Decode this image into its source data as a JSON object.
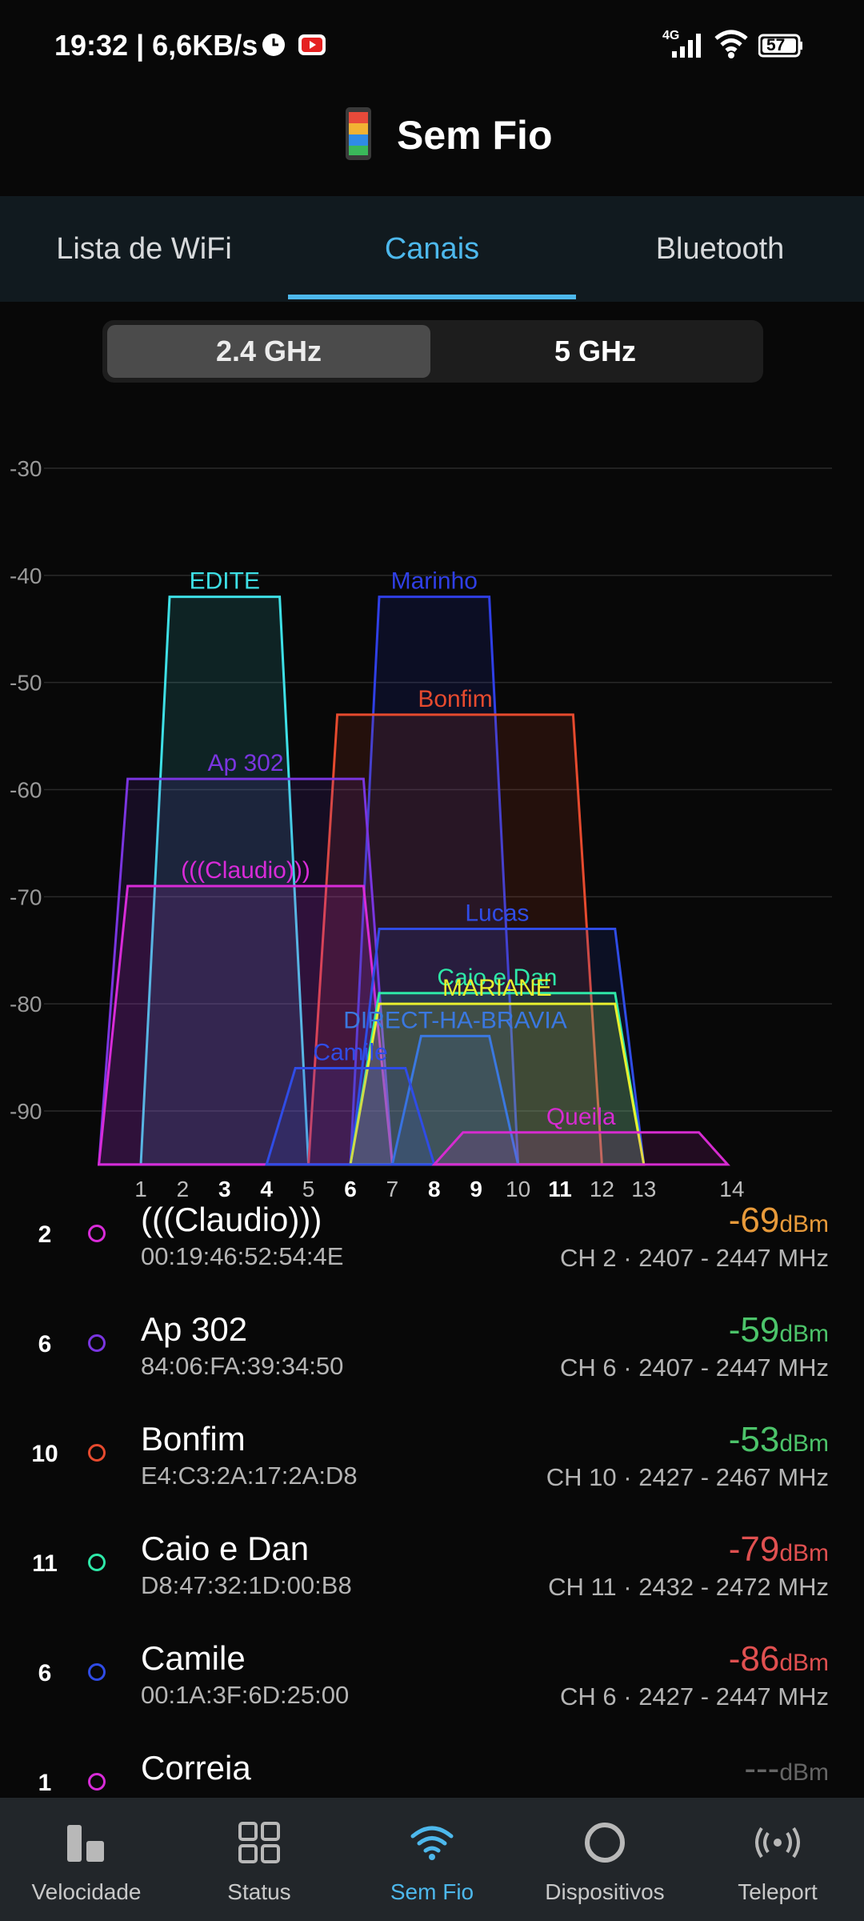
{
  "status_bar": {
    "time_speed": "19:32 | 6,6KB/s",
    "network_type": "4G",
    "battery": "57"
  },
  "header": {
    "title": "Sem Fio",
    "logo": "app-logo-icon"
  },
  "tabs": [
    {
      "label": "Lista de WiFi",
      "active": false
    },
    {
      "label": "Canais",
      "active": true
    },
    {
      "label": "Bluetooth",
      "active": false
    }
  ],
  "band": [
    {
      "label": "2.4 GHz",
      "active": true
    },
    {
      "label": "5 GHz",
      "active": false
    }
  ],
  "chart_data": {
    "type": "area",
    "y_ticks": [
      "-30",
      "-40",
      "-50",
      "-60",
      "-70",
      "-80",
      "-90"
    ],
    "ylim": [
      -95,
      -30
    ],
    "x_ticks": [
      {
        "label": "1",
        "bold": false
      },
      {
        "label": "2",
        "bold": false
      },
      {
        "label": "3",
        "bold": true
      },
      {
        "label": "4",
        "bold": true
      },
      {
        "label": "5",
        "bold": false
      },
      {
        "label": "6",
        "bold": true
      },
      {
        "label": "7",
        "bold": false
      },
      {
        "label": "8",
        "bold": true
      },
      {
        "label": "9",
        "bold": true
      },
      {
        "label": "10",
        "bold": false
      },
      {
        "label": "11",
        "bold": true
      },
      {
        "label": "12",
        "bold": false
      },
      {
        "label": "13",
        "bold": false
      },
      {
        "label": "14",
        "bold": false
      }
    ],
    "series": [
      {
        "name": "EDITE",
        "channel_from": 1,
        "channel_to": 5,
        "signal": -42,
        "color": "#3ee0e6"
      },
      {
        "name": "Marinho",
        "channel_from": 6,
        "channel_to": 10,
        "signal": -42,
        "color": "#2f3fe6"
      },
      {
        "name": "Bonfim",
        "channel_from": 5,
        "channel_to": 12,
        "signal": -53,
        "color": "#e64a2e"
      },
      {
        "name": "Ap 302",
        "channel_from": 0,
        "channel_to": 7,
        "signal": -59,
        "color": "#7a35e0"
      },
      {
        "name": "(((Claudio)))",
        "channel_from": 0,
        "channel_to": 7,
        "signal": -69,
        "color": "#d82bd8"
      },
      {
        "name": "Lucas",
        "channel_from": 6,
        "channel_to": 13,
        "signal": -73,
        "color": "#2f4ce6"
      },
      {
        "name": "Caio e Dan",
        "channel_from": 6,
        "channel_to": 13,
        "signal": -79,
        "color": "#2ee8a8"
      },
      {
        "name": "MARIANE",
        "channel_from": 6,
        "channel_to": 13,
        "signal": -80,
        "color": "#e8f02e"
      },
      {
        "name": "DIRECT-HA-BRAVIA",
        "channel_from": 7,
        "channel_to": 10,
        "signal": -83,
        "color": "#3a78e0"
      },
      {
        "name": "Camile",
        "channel_from": 4,
        "channel_to": 8,
        "signal": -86,
        "color": "#2f4ce6"
      },
      {
        "name": "Queila",
        "channel_from": 8,
        "channel_to": 15,
        "signal": -92,
        "color": "#d62bd0"
      }
    ]
  },
  "networks": [
    {
      "channel": "2",
      "ssid": "(((Claudio)))",
      "bssid": "00:19:46:52:54:4E",
      "signal": "-69",
      "unit": "dBm",
      "signal_color": "#e89a3a",
      "info": "CH 2 · 2407 - 2447 MHz",
      "ring_color": "#d82bd8"
    },
    {
      "channel": "6",
      "ssid": "Ap 302",
      "bssid": "84:06:FA:39:34:50",
      "signal": "-59",
      "unit": "dBm",
      "signal_color": "#4cc46a",
      "info": "CH 6 · 2407 - 2447 MHz",
      "ring_color": "#7a35e0"
    },
    {
      "channel": "10",
      "ssid": "Bonfim",
      "bssid": "E4:C3:2A:17:2A:D8",
      "signal": "-53",
      "unit": "dBm",
      "signal_color": "#4cc46a",
      "info": "CH 10 · 2427 - 2467 MHz",
      "ring_color": "#e64a2e"
    },
    {
      "channel": "11",
      "ssid": "Caio e Dan",
      "bssid": "D8:47:32:1D:00:B8",
      "signal": "-79",
      "unit": "dBm",
      "signal_color": "#e05050",
      "info": "CH 11 · 2432 - 2472 MHz",
      "ring_color": "#2ee8a8"
    },
    {
      "channel": "6",
      "ssid": "Camile",
      "bssid": "00:1A:3F:6D:25:00",
      "signal": "-86",
      "unit": "dBm",
      "signal_color": "#e05050",
      "info": "CH 6 · 2427 - 2447 MHz",
      "ring_color": "#2f4ce6"
    },
    {
      "channel": "1",
      "ssid": "Correia",
      "bssid": "",
      "signal": "---",
      "unit": "dBm",
      "signal_color": "#666666",
      "info": "",
      "ring_color": "#d82bd8"
    }
  ],
  "bottom_nav": [
    {
      "label": "Velocidade",
      "icon": "speed-bars-icon",
      "active": false
    },
    {
      "label": "Status",
      "icon": "grid-icon",
      "active": false
    },
    {
      "label": "Sem Fio",
      "icon": "wifi-icon",
      "active": true
    },
    {
      "label": "Dispositivos",
      "icon": "devices-ring-icon",
      "active": false
    },
    {
      "label": "Teleport",
      "icon": "teleport-icon",
      "active": false
    }
  ]
}
